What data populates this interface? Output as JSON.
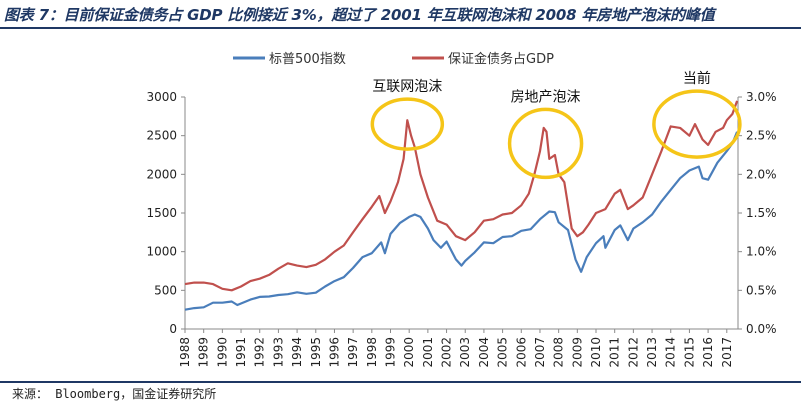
{
  "header": {
    "title": "图表 7：目前保证金债务占 GDP 比例接近 3%，超过了 2001 年互联网泡沫和 2008 年房地产泡沫的峰值"
  },
  "footer": {
    "source": "来源：  Bloomberg，国金证券研究所"
  },
  "colors": {
    "sp500": "#4a7ebb",
    "margin_debt": "#c0504d",
    "circle": "#f5c518",
    "axis": "#8a8a8a",
    "header_rule": "#1f3864"
  },
  "chart_data": {
    "type": "line",
    "title": "",
    "x_ticks": [
      "1988",
      "1989",
      "1990",
      "1991",
      "1992",
      "1993",
      "1994",
      "1995",
      "1996",
      "1997",
      "1998",
      "1999",
      "2000",
      "2001",
      "2002",
      "2003",
      "2004",
      "2005",
      "2006",
      "2007",
      "2008",
      "2009",
      "2010",
      "2011",
      "2012",
      "2013",
      "2014",
      "2015",
      "2016",
      "2017"
    ],
    "xlim": [
      1988,
      2017.6
    ],
    "y_left": {
      "min": 0,
      "max": 3000,
      "ticks": [
        "0",
        "500",
        "1000",
        "1500",
        "2000",
        "2500",
        "3000"
      ]
    },
    "y_right": {
      "min": 0,
      "max": 3.0,
      "ticks": [
        "0.0%",
        "0.5%",
        "1.0%",
        "1.5%",
        "2.0%",
        "2.5%",
        "3.0%"
      ]
    },
    "legend": {
      "position": "top"
    },
    "series": [
      {
        "name": "标普500指数",
        "axis": "left",
        "points": [
          [
            1988.0,
            250
          ],
          [
            1988.5,
            270
          ],
          [
            1989.0,
            280
          ],
          [
            1989.5,
            340
          ],
          [
            1990.0,
            340
          ],
          [
            1990.5,
            355
          ],
          [
            1990.8,
            310
          ],
          [
            1991.0,
            330
          ],
          [
            1991.5,
            380
          ],
          [
            1992.0,
            415
          ],
          [
            1992.5,
            420
          ],
          [
            1993.0,
            440
          ],
          [
            1993.5,
            450
          ],
          [
            1994.0,
            475
          ],
          [
            1994.5,
            455
          ],
          [
            1995.0,
            470
          ],
          [
            1995.5,
            550
          ],
          [
            1996.0,
            620
          ],
          [
            1996.5,
            670
          ],
          [
            1997.0,
            790
          ],
          [
            1997.5,
            930
          ],
          [
            1998.0,
            980
          ],
          [
            1998.5,
            1120
          ],
          [
            1998.7,
            980
          ],
          [
            1999.0,
            1230
          ],
          [
            1999.5,
            1370
          ],
          [
            2000.0,
            1450
          ],
          [
            2000.3,
            1480
          ],
          [
            2000.6,
            1450
          ],
          [
            2001.0,
            1300
          ],
          [
            2001.3,
            1150
          ],
          [
            2001.7,
            1050
          ],
          [
            2002.0,
            1130
          ],
          [
            2002.5,
            900
          ],
          [
            2002.8,
            820
          ],
          [
            2003.0,
            880
          ],
          [
            2003.5,
            990
          ],
          [
            2004.0,
            1120
          ],
          [
            2004.5,
            1110
          ],
          [
            2005.0,
            1190
          ],
          [
            2005.5,
            1200
          ],
          [
            2006.0,
            1270
          ],
          [
            2006.5,
            1290
          ],
          [
            2007.0,
            1420
          ],
          [
            2007.5,
            1520
          ],
          [
            2007.8,
            1510
          ],
          [
            2008.0,
            1380
          ],
          [
            2008.5,
            1280
          ],
          [
            2008.9,
            900
          ],
          [
            2009.2,
            740
          ],
          [
            2009.5,
            930
          ],
          [
            2010.0,
            1110
          ],
          [
            2010.4,
            1200
          ],
          [
            2010.5,
            1050
          ],
          [
            2011.0,
            1280
          ],
          [
            2011.3,
            1340
          ],
          [
            2011.7,
            1150
          ],
          [
            2012.0,
            1300
          ],
          [
            2012.5,
            1380
          ],
          [
            2013.0,
            1480
          ],
          [
            2013.5,
            1650
          ],
          [
            2014.0,
            1800
          ],
          [
            2014.5,
            1950
          ],
          [
            2015.0,
            2050
          ],
          [
            2015.5,
            2100
          ],
          [
            2015.7,
            1950
          ],
          [
            2016.0,
            1930
          ],
          [
            2016.5,
            2150
          ],
          [
            2017.0,
            2300
          ],
          [
            2017.3,
            2400
          ],
          [
            2017.55,
            2550
          ]
        ]
      },
      {
        "name": "保证金债务占GDP",
        "axis": "right",
        "points": [
          [
            1988.0,
            0.58
          ],
          [
            1988.5,
            0.6
          ],
          [
            1989.0,
            0.6
          ],
          [
            1989.5,
            0.58
          ],
          [
            1990.0,
            0.52
          ],
          [
            1990.5,
            0.5
          ],
          [
            1991.0,
            0.55
          ],
          [
            1991.5,
            0.62
          ],
          [
            1992.0,
            0.65
          ],
          [
            1992.5,
            0.7
          ],
          [
            1993.0,
            0.78
          ],
          [
            1993.5,
            0.85
          ],
          [
            1994.0,
            0.82
          ],
          [
            1994.5,
            0.8
          ],
          [
            1995.0,
            0.83
          ],
          [
            1995.5,
            0.9
          ],
          [
            1996.0,
            1.0
          ],
          [
            1996.5,
            1.08
          ],
          [
            1997.0,
            1.25
          ],
          [
            1997.5,
            1.42
          ],
          [
            1998.0,
            1.58
          ],
          [
            1998.4,
            1.72
          ],
          [
            1998.7,
            1.5
          ],
          [
            1999.0,
            1.65
          ],
          [
            1999.4,
            1.9
          ],
          [
            1999.7,
            2.2
          ],
          [
            1999.9,
            2.7
          ],
          [
            2000.1,
            2.5
          ],
          [
            2000.3,
            2.35
          ],
          [
            2000.6,
            2.0
          ],
          [
            2001.0,
            1.7
          ],
          [
            2001.5,
            1.4
          ],
          [
            2002.0,
            1.35
          ],
          [
            2002.5,
            1.2
          ],
          [
            2003.0,
            1.15
          ],
          [
            2003.5,
            1.25
          ],
          [
            2004.0,
            1.4
          ],
          [
            2004.5,
            1.42
          ],
          [
            2005.0,
            1.48
          ],
          [
            2005.5,
            1.5
          ],
          [
            2006.0,
            1.6
          ],
          [
            2006.4,
            1.75
          ],
          [
            2006.7,
            2.0
          ],
          [
            2007.0,
            2.3
          ],
          [
            2007.2,
            2.6
          ],
          [
            2007.35,
            2.55
          ],
          [
            2007.5,
            2.2
          ],
          [
            2007.8,
            2.25
          ],
          [
            2008.0,
            2.0
          ],
          [
            2008.3,
            1.9
          ],
          [
            2008.7,
            1.3
          ],
          [
            2009.0,
            1.2
          ],
          [
            2009.3,
            1.25
          ],
          [
            2009.6,
            1.35
          ],
          [
            2010.0,
            1.5
          ],
          [
            2010.5,
            1.55
          ],
          [
            2011.0,
            1.75
          ],
          [
            2011.3,
            1.8
          ],
          [
            2011.7,
            1.55
          ],
          [
            2012.0,
            1.6
          ],
          [
            2012.5,
            1.7
          ],
          [
            2013.0,
            2.0
          ],
          [
            2013.5,
            2.3
          ],
          [
            2014.0,
            2.62
          ],
          [
            2014.5,
            2.6
          ],
          [
            2015.0,
            2.5
          ],
          [
            2015.3,
            2.65
          ],
          [
            2015.7,
            2.45
          ],
          [
            2016.0,
            2.38
          ],
          [
            2016.4,
            2.55
          ],
          [
            2016.8,
            2.6
          ],
          [
            2017.0,
            2.7
          ],
          [
            2017.3,
            2.78
          ],
          [
            2017.55,
            2.95
          ]
        ]
      }
    ],
    "annotations": [
      {
        "label": "互联网泡沫",
        "x": 1999.9,
        "y_pct": 2.65
      },
      {
        "label": "房地产泡沫",
        "x": 2007.3,
        "y_pct": 2.4
      },
      {
        "label": "当前",
        "x": 2015.4,
        "y_pct": 2.65
      }
    ]
  }
}
